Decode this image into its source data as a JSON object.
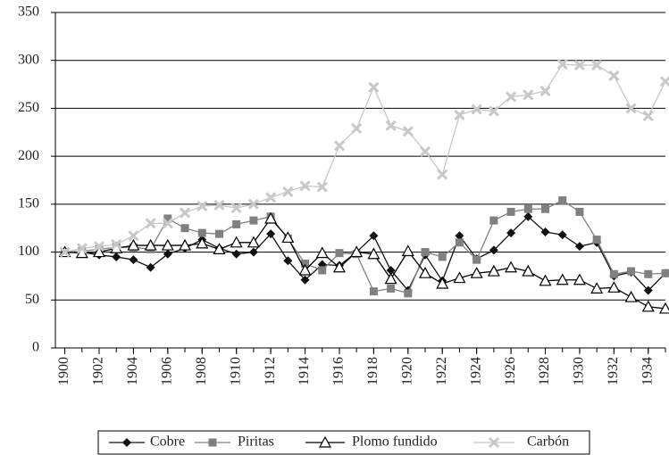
{
  "chart_data": {
    "type": "line",
    "x": [
      1900,
      1901,
      1902,
      1903,
      1904,
      1905,
      1906,
      1907,
      1908,
      1909,
      1910,
      1911,
      1912,
      1913,
      1914,
      1915,
      1916,
      1917,
      1918,
      1919,
      1920,
      1921,
      1922,
      1923,
      1924,
      1925,
      1926,
      1927,
      1928,
      1929,
      1930,
      1931,
      1932,
      1933,
      1934,
      1935
    ],
    "xlim": [
      1899.45,
      1935
    ],
    "xticks": [
      1900,
      1902,
      1904,
      1906,
      1908,
      1910,
      1912,
      1914,
      1916,
      1918,
      1920,
      1922,
      1924,
      1926,
      1928,
      1930,
      1932,
      1934
    ],
    "ylim": [
      0,
      350
    ],
    "yticks": [
      0,
      50,
      100,
      150,
      200,
      250,
      300,
      350
    ],
    "grid": true,
    "legend": "bottom",
    "series": [
      {
        "name": "Cobre",
        "color": "#111111",
        "marker": "diamond",
        "values": [
          100,
          100,
          97,
          95,
          92,
          84,
          98,
          104,
          113,
          104,
          98,
          100,
          119,
          91,
          71,
          87,
          86,
          100,
          117,
          81,
          60,
          97,
          70,
          117,
          93,
          102,
          120,
          137,
          121,
          118,
          106,
          110,
          75,
          79,
          60,
          78
        ]
      },
      {
        "name": "Piritas",
        "color": "#808080",
        "marker": "square",
        "values": [
          100,
          101,
          103,
          105,
          105,
          103,
          135,
          125,
          120,
          119,
          129,
          133,
          137,
          114,
          88,
          81,
          99,
          98,
          59,
          62,
          57,
          100,
          95,
          110,
          92,
          133,
          142,
          145,
          145,
          154,
          142,
          113,
          77,
          80,
          77,
          78
        ]
      },
      {
        "name": "Plomo fundido",
        "color": "#000000",
        "marker": "triangle",
        "values": [
          100,
          99,
          100,
          104,
          107,
          107,
          107,
          107,
          109,
          103,
          110,
          110,
          135,
          115,
          81,
          99,
          84,
          100,
          98,
          72,
          101,
          78,
          67,
          73,
          78,
          80,
          84,
          80,
          70,
          71,
          71,
          62,
          63,
          53,
          43,
          41
        ]
      },
      {
        "name": "Carbón",
        "color": "#c8c8c8",
        "marker": "cross",
        "values": [
          100,
          104,
          106,
          108,
          117,
          130,
          130,
          141,
          148,
          149,
          146,
          150,
          157,
          163,
          169,
          168,
          211,
          229,
          272,
          232,
          226,
          205,
          181,
          243,
          249,
          247,
          262,
          264,
          268,
          296,
          295,
          295,
          284,
          250,
          242,
          278
        ]
      }
    ]
  }
}
